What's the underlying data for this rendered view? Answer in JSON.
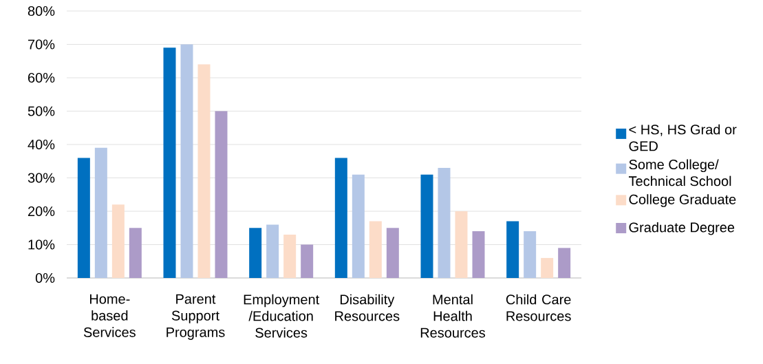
{
  "chart_data": {
    "type": "bar",
    "categories": [
      "Home-based Services",
      "Parent Support Programs",
      "Employment /Education Services",
      "Disability Resources",
      "Mental Health Resources",
      "Child Care Resources"
    ],
    "series": [
      {
        "name": "< HS, HS Grad or GED",
        "color": "#0070c0",
        "values": [
          36,
          69,
          15,
          36,
          31,
          17
        ]
      },
      {
        "name": "Some College/ Technical School",
        "color": "#b4c7e7",
        "values": [
          39,
          70,
          16,
          31,
          33,
          14
        ]
      },
      {
        "name": "College Graduate",
        "color": "#fcdcc8",
        "values": [
          22,
          64,
          13,
          17,
          20,
          6
        ]
      },
      {
        "name": "Graduate Degree",
        "color": "#ac9bc8",
        "values": [
          15,
          50,
          10,
          15,
          14,
          9
        ]
      }
    ],
    "ylim": [
      0,
      80
    ],
    "yticks": [
      {
        "value": 0,
        "label": "0%"
      },
      {
        "value": 10,
        "label": "10%"
      },
      {
        "value": 20,
        "label": "20%"
      },
      {
        "value": 30,
        "label": "30%"
      },
      {
        "value": 40,
        "label": "40%"
      },
      {
        "value": 50,
        "label": "50%"
      },
      {
        "value": 60,
        "label": "60%"
      },
      {
        "value": 70,
        "label": "70%"
      },
      {
        "value": 80,
        "label": "80%"
      }
    ],
    "grid": "y",
    "legend": "right"
  }
}
